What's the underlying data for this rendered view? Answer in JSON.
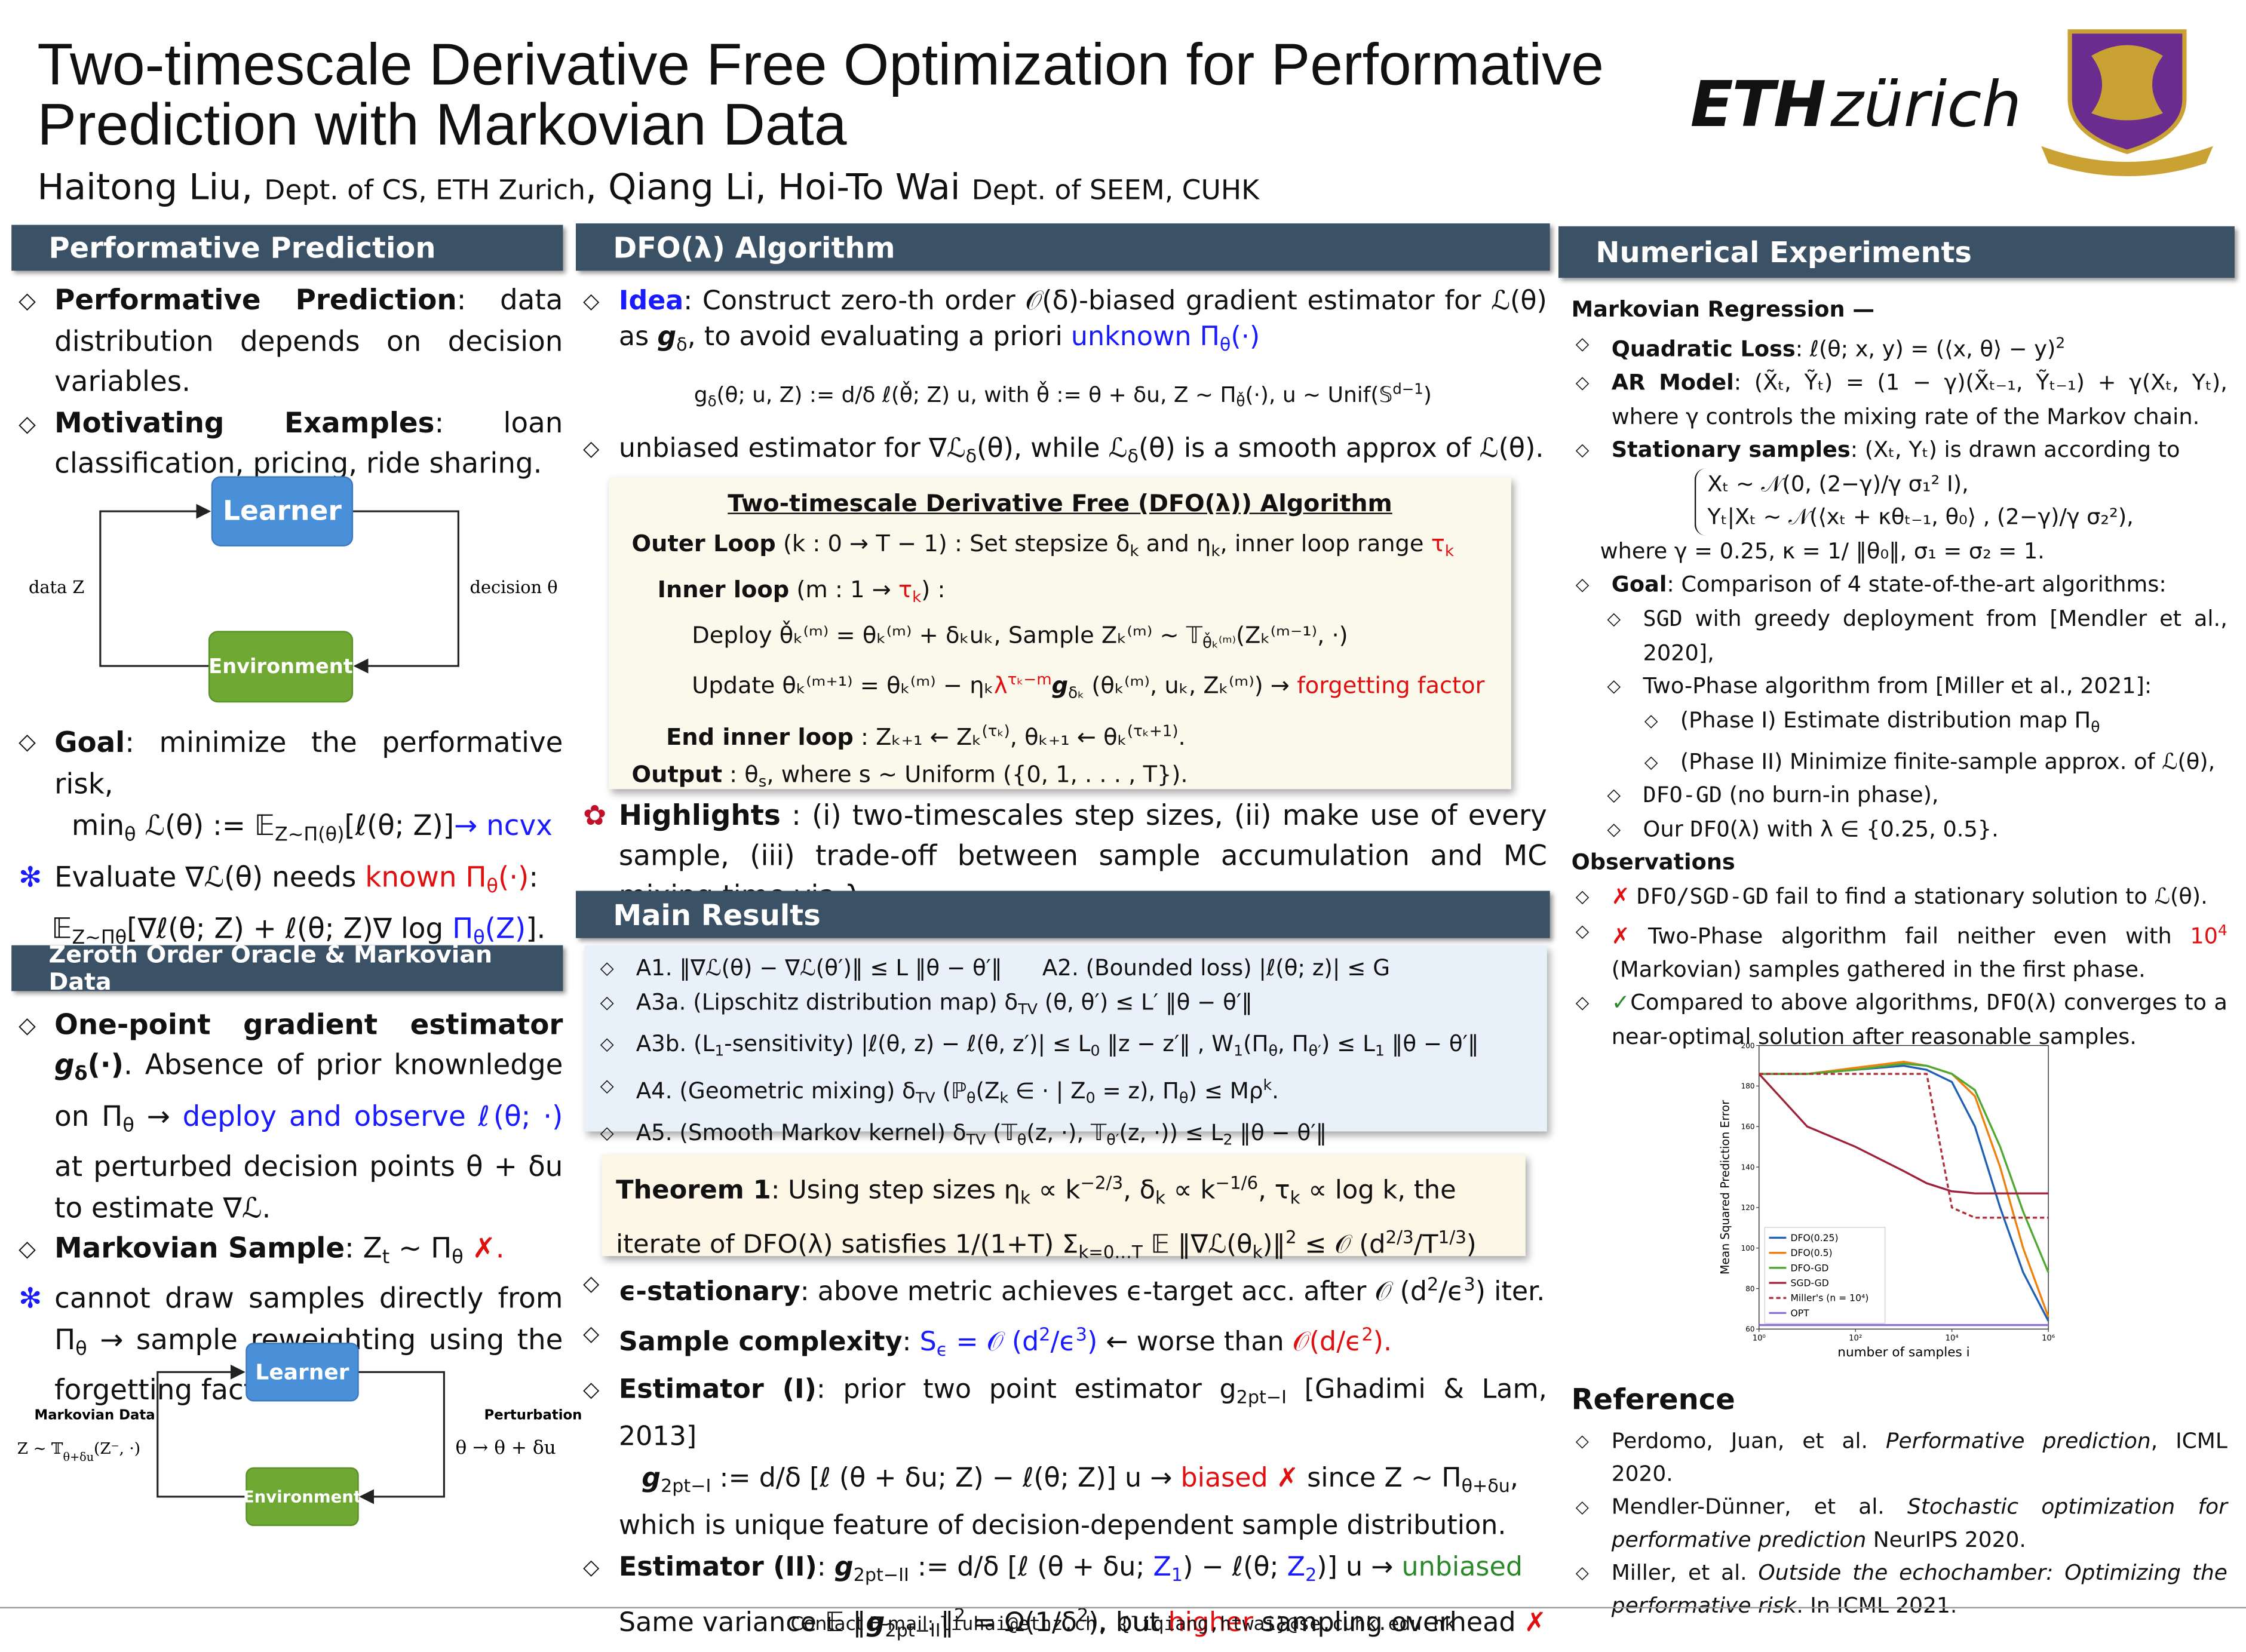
{
  "header": {
    "title": "Two-timescale Derivative Free Optimization for Performative Prediction with Markovian Data",
    "authors": [
      "Haitong Liu, ",
      "Dept. of CS, ETH Zurich",
      ", Qiang Li, Hoi-To Wai ",
      "Dept. of SEEM, CUHK"
    ],
    "logo": [
      "ETH",
      "zürich"
    ]
  },
  "performative": {
    "heading": "Performative Prediction",
    "bullets": [
      [
        "Performative Prediction",
        ": data distribution depends on decision variables."
      ],
      [
        "Motivating Examples",
        ": loan classification, pricing, ride sharing."
      ]
    ],
    "diagram": {
      "learner": "Learner",
      "environment": "Environment",
      "left": "data Z",
      "right": "decision θ"
    },
    "goal": [
      "Goal",
      ": minimize the performative risk,"
    ],
    "goal_formula": [
      "min",
      "θ",
      " ℒ(θ) := 𝔼",
      "Z∼Π(θ)",
      "[ℓ(θ; Z)]",
      "→ ncvx"
    ],
    "evaluate": [
      "Evaluate ∇ℒ(θ) needs ",
      "known Π",
      "θ",
      "(·)",
      ":"
    ],
    "evaluate_formula": [
      "𝔼",
      "Z∼Π",
      "θ",
      "[∇ℓ(θ; Z) + ℓ(θ; Z)∇ log ",
      "Π",
      "θ",
      "(Z)",
      "]."
    ]
  },
  "zeroth": {
    "heading": "Zeroth Order Oracle & Markovian Data",
    "bullets": [
      [
        "One-point gradient estimator ",
        "g",
        "δ",
        "(·)",
        ". Absence of prior knownledge on Π",
        "θ",
        " → ",
        "deploy and observe ℓ(θ; ·)",
        " at perturbed decision points θ + δu to estimate ∇ℒ."
      ],
      [
        "Markovian Sample",
        ": Z",
        "t",
        " ∼ Π",
        "θ",
        " ",
        "✗."
      ],
      [
        "cannot draw samples directly from Π",
        "θ",
        " → sample reweighting using the forgetting factor λ."
      ]
    ],
    "diagram": {
      "learner": "Learner",
      "environment": "Environment",
      "left_title": "Markovian Data",
      "left_formula": [
        "Z ∼ 𝕋",
        "θ+δu",
        "(Z⁻, ·)"
      ],
      "right_title": "Perturbation",
      "right_formula": "θ → θ + δu"
    }
  },
  "algorithm": {
    "heading": "DFO(λ) Algorithm",
    "idea": [
      "Idea",
      ": Construct zero-th order 𝒪(δ)-biased gradient estimator for ℒ(θ) as ",
      "g",
      "δ",
      ", to avoid evaluating a priori ",
      "unknown Π",
      "θ",
      "(·)"
    ],
    "idea_formula": [
      "g",
      "δ",
      "(θ; u, Z) := ",
      "d/δ",
      " ℓ(θ̌; Z) u,  with θ̌ := θ + δu, Z ∼ Π",
      "θ̌",
      "(·), u ∼ Unif(𝕊",
      "d−1",
      ")"
    ],
    "unbiased": [
      "unbiased estimator for ∇ℒ",
      "δ",
      "(θ), while ℒ",
      "δ",
      "(θ) is a smooth approx of ℒ(θ)."
    ],
    "box": {
      "title": "Two-timescale Derivative Free (DFO(λ)) Algorithm",
      "outer": [
        "Outer Loop",
        " (k : 0 → T − 1) :  Set stepsize δ",
        "k",
        " and η",
        "k",
        ", inner loop range ",
        "τ",
        "k"
      ],
      "inner": [
        "Inner loop",
        " (m : 1 → ",
        "τ",
        "k",
        ") :"
      ],
      "deploy": [
        "Deploy θ̌ₖ⁽ᵐ⁾ = θₖ⁽ᵐ⁾ + δₖuₖ, Sample Zₖ⁽ᵐ⁾ ∼ 𝕋",
        "θ̌ₖ⁽ᵐ⁾",
        "(Zₖ⁽ᵐ⁻¹⁾, ·)"
      ],
      "update": [
        "Update θₖ⁽ᵐ⁺¹⁾ = θₖ⁽ᵐ⁾ − ηₖ",
        "λ",
        "τₖ−m",
        "g",
        "δₖ",
        " (θₖ⁽ᵐ⁾, uₖ, Zₖ⁽ᵐ⁾) → ",
        "forgetting factor"
      ],
      "end": [
        "End inner loop",
        " : Zₖ₊₁ ← Zₖ",
        "(τₖ)",
        ", θₖ₊₁ ← θₖ",
        "(τₖ+1)",
        "."
      ],
      "output": [
        "Output",
        " : θ",
        "s",
        ",  where s ∼ Uniform ({0, 1, . . . , T})."
      ]
    },
    "highlights": [
      "Highlights",
      " : (i) two-timescales step sizes, (ii) make use of every sample, (iii) trade-off between sample accumulation and MC mixing time via λ."
    ]
  },
  "results": {
    "heading": "Main Results",
    "assumptions": [
      [
        "A1. ‖∇ℒ(θ) − ∇ℒ(θ′)‖ ≤ L ‖θ − θ′‖",
        "A2. (Bounded loss) |ℓ(θ; z)| ≤ G"
      ],
      [
        "A3a. (Lipschitz distribution map) δ",
        "TV",
        " (θ, θ′) ≤ L′ ‖θ − θ′‖"
      ],
      [
        "A3b. (L",
        "1",
        "-sensitivity) |ℓ(θ, z) − ℓ(θ, z′)| ≤ L",
        "0",
        " ‖z − z′‖ ,  W",
        "1",
        "(Π",
        "θ",
        ", Π",
        "θ′",
        ") ≤ L",
        "1",
        " ‖θ − θ′‖"
      ],
      [
        "A4. (Geometric mixing) δ",
        "TV",
        " (ℙ",
        "θ",
        "(Z",
        "k",
        " ∈ · | Z",
        "0",
        " = z), Π",
        "θ",
        ") ≤ Mρ",
        "k",
        "."
      ],
      [
        "A5. (Smooth Markov kernel) δ",
        "TV",
        " (𝕋",
        "θ",
        "(z, ·), 𝕋",
        "θ′",
        "(z, ·)) ≤ L",
        "2",
        " ‖θ − θ′‖"
      ]
    ],
    "theorem": [
      "Theorem 1",
      ": Using step sizes η",
      "k",
      " ∝ k",
      "−2/3",
      ", δ",
      "k",
      " ∝ k",
      "−1/6",
      ", τ",
      "k",
      " ∝ log k, the iterate of DFO(λ) satisfies ",
      "1/(1+T) Σ",
      "k=0…T",
      " 𝔼 ‖∇ℒ(θ",
      "k",
      ")‖",
      "2",
      " ≤ 𝒪 (d",
      "2/3",
      "/T",
      "1/3",
      ")"
    ],
    "stationary": [
      "ϵ-stationary",
      ": above metric achieves ϵ-target acc. after 𝒪 (d",
      "2",
      "/ϵ",
      "3",
      ") iter."
    ],
    "complexity": [
      "Sample complexity",
      ": ",
      "S",
      "ϵ",
      " = 𝒪 (d",
      "2",
      "/ϵ",
      "3",
      ")",
      " ← worse than ",
      "𝒪(d/ϵ",
      "2",
      ")."
    ],
    "est1": [
      "Estimator (I)",
      ": prior two point estimator g",
      "2pt−I",
      " [Ghadimi & Lam, 2013]"
    ],
    "est1_formula": [
      "g",
      "2pt−I",
      " := ",
      "d/δ",
      " [ℓ (θ + δu; Z) − ℓ(θ; Z)] u  →  ",
      "biased ✗",
      " since Z ∼ Π",
      "θ+δu",
      ","
    ],
    "est1_note": "which is unique feature of decision-dependent sample distribution.",
    "est2": [
      "Estimator (II)",
      ": ",
      "g",
      "2pt−II",
      " := ",
      "d/δ",
      " [ℓ (θ + δu; ",
      "Z",
      "1",
      ") − ℓ(θ; ",
      "Z",
      "2",
      ")] u  → ",
      "unbiased"
    ],
    "est2_note": [
      "Same variance 𝔼 ‖",
      "g",
      "2pt−II",
      "‖",
      "2",
      " = Ω(1/δ",
      "2",
      "), but ",
      "higher",
      " sampling overhead ",
      "✗"
    ]
  },
  "experiments": {
    "heading": "Numerical Experiments",
    "subtitle": "Markovian Regression —",
    "quad": [
      "Quadratic Loss",
      ": ℓ(θ; x, y) = (⟨x, θ⟩ − y)",
      "2"
    ],
    "ar": [
      "AR Model",
      ": (X̃ₜ, Ỹₜ) = (1 − γ)(X̃ₜ₋₁, Ỹₜ₋₁) + γ(Xₜ, Yₜ), where γ controls the mixing rate of the Markov chain."
    ],
    "stationary": [
      "Stationary samples",
      ": (Xₜ, Yₜ) is drawn according to"
    ],
    "eq": [
      "Xₜ ∼ 𝒩(0, (2−γ)/γ σ₁² I),",
      "Yₜ|Xₜ ∼ 𝒩(⟨xₜ + κθₜ₋₁, θ₀⟩ , (2−γ)/γ σ₂²),"
    ],
    "where": "where γ = 0.25, κ = 1/ ‖θ₀‖, σ₁ = σ₂ = 1.",
    "goal": [
      "Goal",
      ": Comparison of 4 state-of-the-art algorithms:"
    ],
    "algos": [
      [
        "SGD",
        " with greedy deployment from [Mendler et al., 2020],"
      ],
      [
        "Two-Phase algorithm from [Miller et al., 2021]:"
      ],
      [
        "(Phase I) Estimate distribution map Π",
        "θ"
      ],
      [
        "(Phase II) Minimize finite-sample approx. of ℒ(θ),"
      ],
      [
        "DFO-GD",
        " (no burn-in phase),"
      ],
      [
        "Our ",
        "DFO",
        "(λ) with λ ∈ {0.25, 0.5}."
      ]
    ],
    "observations_title": "Observations",
    "observations": [
      [
        "✗ ",
        "DFO/SGD-GD",
        " fail to find a stationary solution to ℒ(θ)."
      ],
      [
        "✗",
        " Two-Phase algorithm fail neither even with ",
        "10",
        "4",
        " (Markovian) samples gathered in the first phase."
      ],
      [
        "✓",
        "Compared to above algorithms, ",
        "DFO",
        "(λ) converges to a near-optimal solution after reasonable samples."
      ]
    ]
  },
  "references": {
    "heading": "Reference",
    "items": [
      [
        "Perdomo, Juan, et al. ",
        "Performative prediction",
        ", ICML 2020."
      ],
      [
        "Mendler-Dünner, et al. ",
        "Stochastic optimization for performative prediction",
        " NeurIPS 2020."
      ],
      [
        "Miller, et al. ",
        "Outside the echochamber: Optimizing the performative risk",
        ". In ICML 2021."
      ]
    ]
  },
  "footer": [
    "Contact E-mail: ",
    "liuhai@ethz.ch, {liqiang,htwai}@se.cuhk.edu.hk"
  ],
  "chart_data": {
    "type": "line",
    "xscale": "log",
    "legend": "lower left",
    "x_label": "number of samples i",
    "y_label": "Mean Squared Prediction Error",
    "x": [
      1,
      10,
      100,
      1000,
      3000,
      10000,
      30000,
      100000,
      300000,
      1000000
    ],
    "xlim": [
      1,
      1000000
    ],
    "ylim": [
      60,
      200
    ],
    "xticks": [
      {
        "value": 1,
        "label": "10⁰"
      },
      {
        "value": 100,
        "label": "10²"
      },
      {
        "value": 10000,
        "label": "10⁴"
      },
      {
        "value": 1000000,
        "label": "10⁶"
      }
    ],
    "yticks": [
      60,
      80,
      100,
      120,
      140,
      160,
      180,
      200
    ],
    "series": [
      {
        "name": "DFO(0.25)",
        "color": "#1f5fb4",
        "values": [
          186,
          186,
          188,
          190,
          188,
          182,
          160,
          120,
          88,
          64
        ]
      },
      {
        "name": "DFO(0.5)",
        "color": "#f07f0e",
        "values": [
          186,
          186,
          189,
          192,
          190,
          186,
          175,
          140,
          100,
          66
        ]
      },
      {
        "name": "DFO-GD",
        "color": "#4ea832",
        "values": [
          186,
          186,
          188,
          191,
          190,
          186,
          178,
          150,
          118,
          88
        ]
      },
      {
        "name": "SGD-GD",
        "color": "#a0203a",
        "values": [
          186,
          160,
          150,
          138,
          132,
          128,
          127,
          127,
          127,
          127
        ]
      },
      {
        "name": "Miller's (n = 10⁴)",
        "color": "#b0303a",
        "dash": true,
        "values": [
          186,
          186,
          186,
          186,
          186,
          120,
          115,
          115,
          115,
          115
        ]
      },
      {
        "name": "OPT",
        "color": "#8a6fd6",
        "values": [
          62,
          62,
          62,
          62,
          62,
          62,
          62,
          62,
          62,
          62
        ]
      }
    ]
  }
}
